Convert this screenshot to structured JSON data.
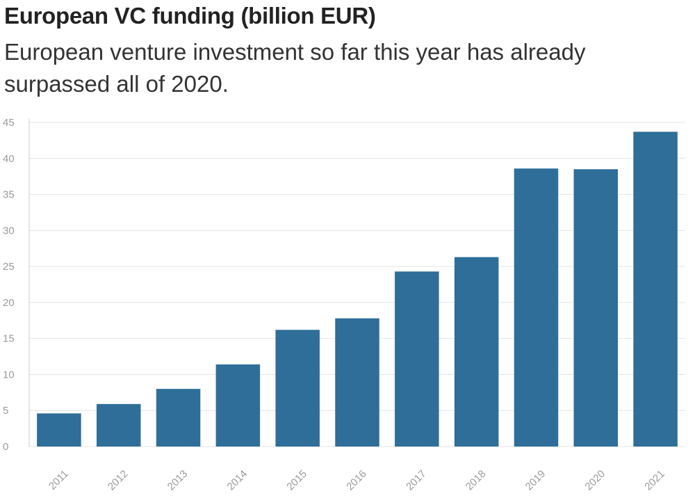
{
  "chart_data": {
    "type": "bar",
    "title": "European VC funding (billion EUR)",
    "subtitle": "European venture investment so far this year has already surpassed all of 2020.",
    "categories": [
      "2011",
      "2012",
      "2013",
      "2014",
      "2015",
      "2016",
      "2017",
      "2018",
      "2019",
      "2020",
      "2021"
    ],
    "values": [
      4.6,
      5.9,
      8.0,
      11.4,
      16.2,
      17.8,
      24.3,
      26.3,
      38.6,
      38.5,
      43.7
    ],
    "xlabel": "",
    "ylabel": "",
    "ylim": [
      0,
      45
    ],
    "yticks": [
      "0",
      "5",
      "10",
      "15",
      "20",
      "25",
      "30",
      "35",
      "40",
      "45"
    ],
    "grid": true,
    "bar_color": "#2e6e99"
  }
}
